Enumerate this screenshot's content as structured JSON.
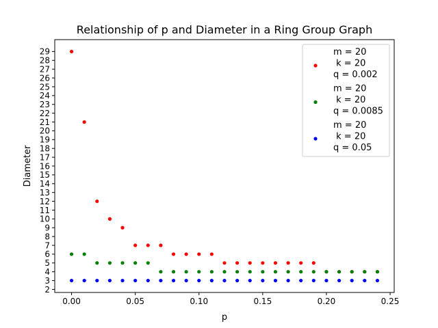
{
  "chart_data": {
    "type": "scatter",
    "title": "Relationship of p and Diameter in a Ring Group Graph",
    "xlabel": "p",
    "ylabel": "Diameter",
    "xlim": [
      -0.0132,
      0.2532
    ],
    "ylim": [
      1.65,
      30.35
    ],
    "xticks": [
      0.0,
      0.05,
      0.1,
      0.15,
      0.2,
      0.25
    ],
    "xtick_labels": [
      "0.00",
      "0.05",
      "0.10",
      "0.15",
      "0.20",
      "0.25"
    ],
    "yticks": [
      2,
      3,
      4,
      5,
      6,
      7,
      8,
      9,
      10,
      11,
      12,
      13,
      14,
      15,
      16,
      17,
      18,
      19,
      20,
      21,
      22,
      23,
      24,
      25,
      26,
      27,
      28,
      29
    ],
    "grid": false,
    "legend_position": "top-right",
    "x": [
      0.0,
      0.01,
      0.02,
      0.03,
      0.04,
      0.05,
      0.06,
      0.07,
      0.08,
      0.09,
      0.1,
      0.11,
      0.12,
      0.13,
      0.14,
      0.15,
      0.16,
      0.17,
      0.18,
      0.19,
      0.2,
      0.21,
      0.22,
      0.23,
      0.24
    ],
    "series": [
      {
        "name": [
          "m = 20",
          " k = 20",
          "q = 0.002"
        ],
        "color": "#ff0000",
        "values": [
          29,
          21,
          12,
          10,
          9,
          7,
          7,
          7,
          6,
          6,
          6,
          6,
          5,
          5,
          5,
          5,
          5,
          5,
          5,
          5,
          4,
          4,
          4,
          4,
          4
        ]
      },
      {
        "name": [
          "m = 20",
          " k = 20",
          "q = 0.0085"
        ],
        "color": "#008000",
        "values": [
          6,
          6,
          5,
          5,
          5,
          5,
          5,
          4,
          4,
          4,
          4,
          4,
          4,
          4,
          4,
          4,
          4,
          4,
          4,
          4,
          4,
          4,
          4,
          4,
          4
        ]
      },
      {
        "name": [
          "m = 20",
          " k = 20",
          "q = 0.05"
        ],
        "color": "#0000ff",
        "values": [
          3,
          3,
          3,
          3,
          3,
          3,
          3,
          3,
          3,
          3,
          3,
          3,
          3,
          3,
          3,
          3,
          3,
          3,
          3,
          3,
          3,
          3,
          3,
          3,
          3
        ]
      }
    ]
  }
}
